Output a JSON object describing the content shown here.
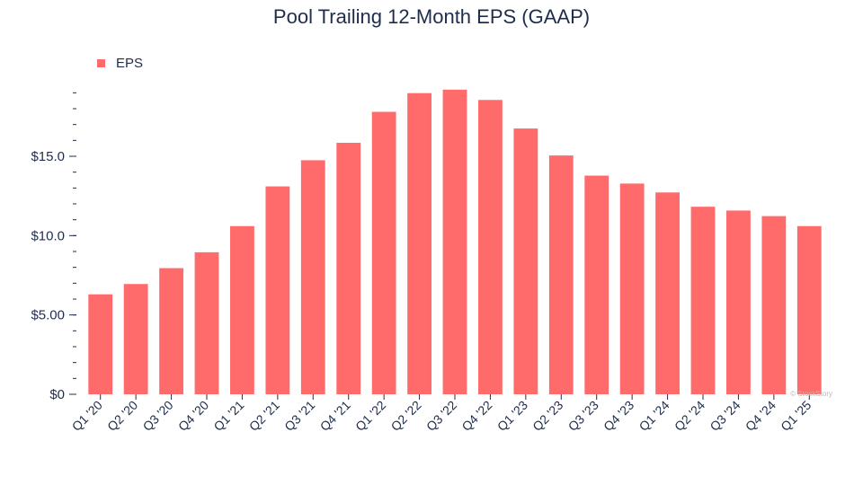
{
  "chart_data": {
    "type": "bar",
    "title": "Pool Trailing 12-Month EPS (GAAP)",
    "xlabel": "",
    "ylabel": "",
    "ylim": [
      0,
      19.5
    ],
    "yticks": [
      0,
      5,
      10,
      15
    ],
    "ytick_labels": [
      "$0",
      "$5.00",
      "$10.0",
      "$15.0"
    ],
    "grid": false,
    "legend": "top-left",
    "categories": [
      "Q1 '20",
      "Q2 '20",
      "Q3 '20",
      "Q4 '20",
      "Q1 '21",
      "Q2 '21",
      "Q3 '21",
      "Q4 '21",
      "Q1 '22",
      "Q2 '22",
      "Q3 '22",
      "Q4 '22",
      "Q1 '23",
      "Q2 '23",
      "Q3 '23",
      "Q4 '23",
      "Q1 '24",
      "Q2 '24",
      "Q3 '24",
      "Q4 '24",
      "Q1 '25"
    ],
    "series": [
      {
        "name": "EPS",
        "color": "#ff6b6b",
        "values": [
          6.3,
          6.95,
          7.95,
          8.95,
          10.6,
          13.1,
          14.75,
          15.85,
          17.8,
          18.98,
          19.2,
          18.55,
          16.75,
          15.05,
          13.78,
          13.28,
          12.72,
          11.82,
          11.58,
          11.23,
          10.6
        ]
      }
    ]
  },
  "watermark": "© StockStory"
}
